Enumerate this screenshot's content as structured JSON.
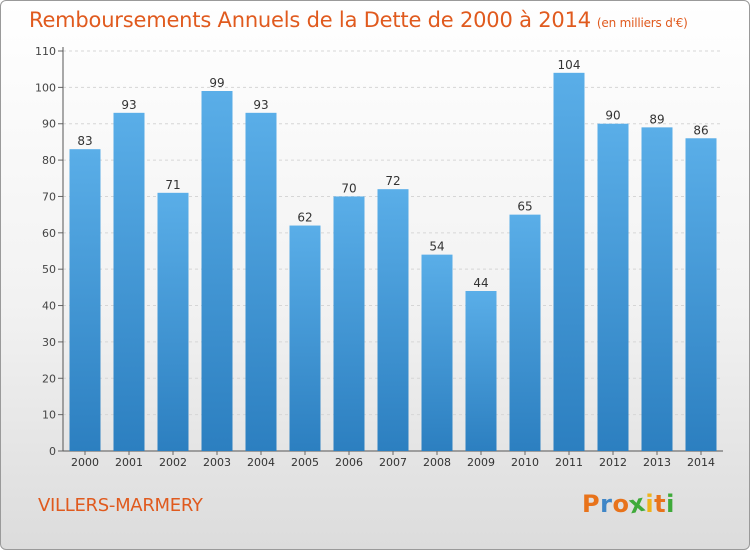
{
  "header": {
    "title": "Remboursements Annuels de la Dette de 2000 à 2014",
    "unit": "(en milliers d'€)"
  },
  "footer": {
    "commune": "VILLERS-MARMERY",
    "logo_text": "Proxiti"
  },
  "colors": {
    "title": "#e05a1e",
    "bar_light": "#5aaee8",
    "bar_dark": "#2c7fc0",
    "logo_letters": [
      "#e8731b",
      "#3f86c7",
      "#e8731b",
      "#3faa3a",
      "#f0b31b",
      "#e8731b",
      "#3faa3a"
    ]
  },
  "chart_data": {
    "type": "bar",
    "title": "Remboursements Annuels de la Dette de 2000 à 2014",
    "subtitle": "(en milliers d'€)",
    "categories": [
      "2000",
      "2001",
      "2002",
      "2003",
      "2004",
      "2005",
      "2006",
      "2007",
      "2008",
      "2009",
      "2010",
      "2011",
      "2012",
      "2013",
      "2014"
    ],
    "values": [
      83,
      93,
      71,
      99,
      93,
      62,
      70,
      72,
      54,
      44,
      65,
      104,
      90,
      89,
      86
    ],
    "ylim": [
      0,
      110
    ],
    "yticks": [
      0,
      10,
      20,
      30,
      40,
      50,
      60,
      70,
      80,
      90,
      100,
      110
    ],
    "grid": true,
    "data_labels": true
  }
}
